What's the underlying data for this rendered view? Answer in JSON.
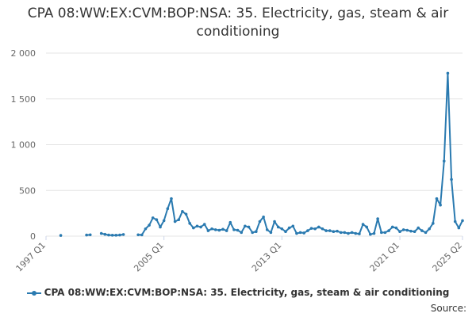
{
  "title": "CPA 08:WW:EX:CVM:BOP:NSA: 35. Electricity, gas, steam & air conditioning",
  "source_label": "Source:",
  "colors": {
    "series": "#2a7ab0",
    "grid": "#e6e6e6",
    "axis_text": "#666666"
  },
  "chart_data": {
    "type": "line",
    "title": "CPA 08:WW:EX:CVM:BOP:NSA: 35. Electricity, gas, steam & air conditioning",
    "xlabel": "",
    "ylabel": "",
    "x_tick_labels": [
      "1997 Q1",
      "2005 Q1",
      "2013 Q1",
      "2021 Q1",
      "2025 Q2"
    ],
    "y_tick_labels": [
      "0",
      "500",
      "1 000",
      "1 500",
      "2 000"
    ],
    "ylim": [
      0,
      2000
    ],
    "xlim": [
      "1997 Q1",
      "2025 Q2"
    ],
    "grid": true,
    "legend": "bottom",
    "series": [
      {
        "name": "CPA 08:WW:EX:CVM:BOP:NSA: 35. Electricity, gas, steam & air conditioning",
        "x": [
          "1998 Q1",
          "1999 Q4",
          "2000 Q1",
          "2000 Q4",
          "2001 Q1",
          "2001 Q2",
          "2001 Q3",
          "2001 Q4",
          "2002 Q1",
          "2002 Q2",
          "2003 Q2",
          "2003 Q3",
          "2003 Q4",
          "2004 Q1",
          "2004 Q2",
          "2004 Q3",
          "2004 Q4",
          "2005 Q1",
          "2005 Q2",
          "2005 Q3",
          "2005 Q4",
          "2006 Q1",
          "2006 Q2",
          "2006 Q3",
          "2006 Q4",
          "2007 Q1",
          "2007 Q2",
          "2007 Q3",
          "2007 Q4",
          "2008 Q1",
          "2008 Q2",
          "2008 Q3",
          "2008 Q4",
          "2009 Q1",
          "2009 Q2",
          "2009 Q3",
          "2009 Q4",
          "2010 Q1",
          "2010 Q2",
          "2010 Q3",
          "2010 Q4",
          "2011 Q1",
          "2011 Q2",
          "2011 Q3",
          "2011 Q4",
          "2012 Q1",
          "2012 Q2",
          "2012 Q3",
          "2012 Q4",
          "2013 Q1",
          "2013 Q2",
          "2013 Q3",
          "2013 Q4",
          "2014 Q1",
          "2014 Q2",
          "2014 Q3",
          "2014 Q4",
          "2015 Q1",
          "2015 Q2",
          "2015 Q3",
          "2015 Q4",
          "2016 Q1",
          "2016 Q2",
          "2016 Q3",
          "2016 Q4",
          "2017 Q1",
          "2017 Q2",
          "2017 Q3",
          "2017 Q4",
          "2018 Q1",
          "2018 Q2",
          "2018 Q3",
          "2018 Q4",
          "2019 Q1",
          "2019 Q2",
          "2019 Q3",
          "2019 Q4",
          "2020 Q1",
          "2020 Q2",
          "2020 Q3",
          "2020 Q4",
          "2021 Q1",
          "2021 Q2",
          "2021 Q3",
          "2021 Q4",
          "2022 Q1",
          "2022 Q2",
          "2022 Q3",
          "2022 Q4",
          "2023 Q1",
          "2023 Q2",
          "2023 Q3",
          "2023 Q4",
          "2024 Q1",
          "2024 Q2",
          "2024 Q3",
          "2024 Q4",
          "2025 Q1",
          "2025 Q2"
        ],
        "values": [
          8,
          12,
          15,
          30,
          20,
          12,
          10,
          10,
          12,
          18,
          15,
          14,
          80,
          120,
          200,
          180,
          100,
          170,
          300,
          410,
          160,
          180,
          270,
          240,
          140,
          90,
          110,
          100,
          130,
          60,
          80,
          70,
          65,
          75,
          60,
          150,
          70,
          65,
          40,
          110,
          100,
          40,
          50,
          160,
          210,
          70,
          40,
          160,
          100,
          80,
          50,
          90,
          110,
          30,
          40,
          35,
          60,
          85,
          80,
          100,
          80,
          60,
          60,
          50,
          55,
          40,
          40,
          30,
          40,
          30,
          25,
          130,
          100,
          20,
          30,
          190,
          40,
          40,
          60,
          100,
          90,
          50,
          70,
          65,
          55,
          50,
          90,
          60,
          40,
          80,
          140,
          410,
          340,
          820,
          1780,
          620,
          160,
          90,
          170
        ]
      }
    ]
  }
}
